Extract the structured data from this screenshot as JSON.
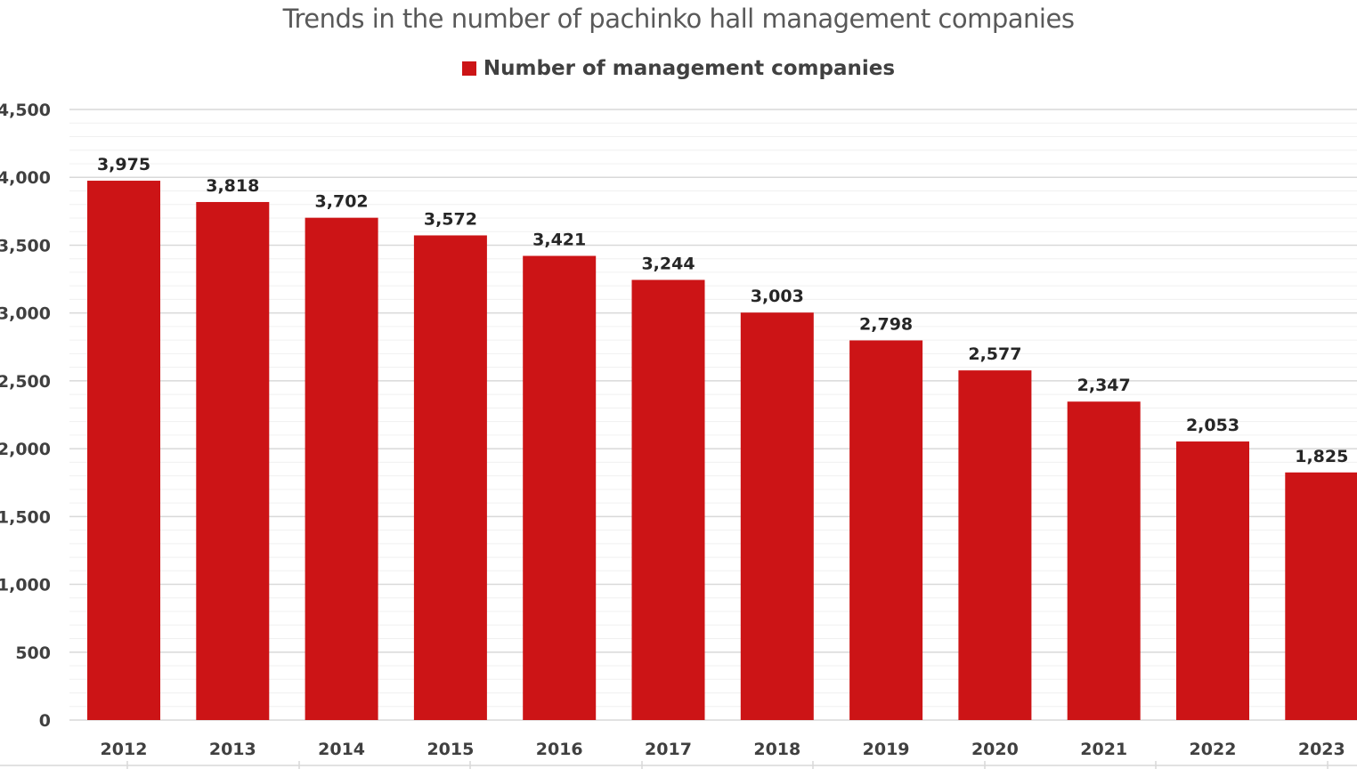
{
  "chart_data": {
    "type": "bar",
    "title": "Trends in the number of pachinko hall management companies",
    "categories": [
      "2012",
      "2013",
      "2014",
      "2015",
      "2016",
      "2017",
      "2018",
      "2019",
      "2020",
      "2021",
      "2022",
      "2023"
    ],
    "series": [
      {
        "name": "Number of management companies",
        "values": [
          3975,
          3818,
          3702,
          3572,
          3421,
          3244,
          3003,
          2798,
          2577,
          2347,
          2053,
          1825
        ],
        "labels": [
          "3,975",
          "3,818",
          "3,702",
          "3,572",
          "3,421",
          "3,244",
          "3,003",
          "2,798",
          "2,577",
          "2,347",
          "2,053",
          "1,825"
        ]
      }
    ],
    "ylim": [
      0,
      4500
    ],
    "yticks": [
      "0",
      "500",
      "1,000",
      "1,500",
      "2,000",
      "2,500",
      "3,000",
      "3,500",
      "4,000",
      "4,500"
    ],
    "grid": true,
    "legend_position": "top",
    "colors": {
      "bar": "#cc1416",
      "gridline": "#d9d9d9",
      "minor_gridline": "#f0f0f0"
    }
  }
}
